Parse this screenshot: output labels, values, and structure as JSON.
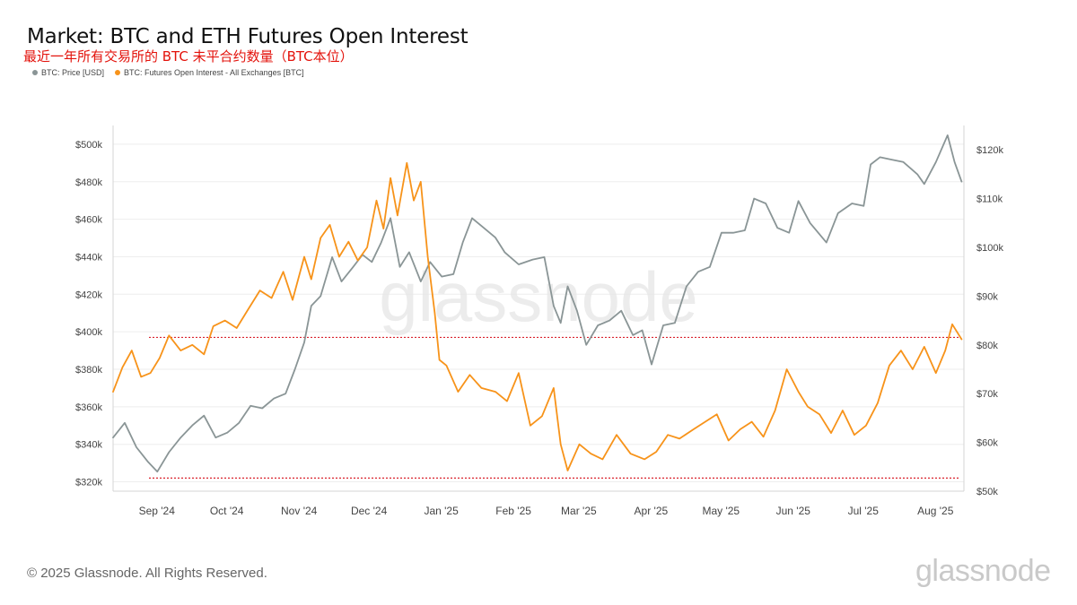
{
  "title": "Market: BTC and ETH Futures Open Interest",
  "subtitle": "最近一年所有交易所的 BTC 未平合约数量（BTC本位）",
  "footer": "© 2025 Glassnode. All Rights Reserved.",
  "brand": "glassnode",
  "watermark": "glassnode",
  "chart_data": {
    "type": "line",
    "legend_placement": "top-left",
    "grid": true,
    "x_ticks": [
      "Sep '24",
      "Oct '24",
      "Nov '24",
      "Dec '24",
      "Jan '25",
      "Feb '25",
      "Mar '25",
      "Apr '25",
      "May '25",
      "Jun '25",
      "Jul '25",
      "Aug '25"
    ],
    "y_left": {
      "min": 315000,
      "max": 510000,
      "ticks": [
        320000,
        340000,
        360000,
        380000,
        400000,
        420000,
        440000,
        460000,
        480000,
        500000
      ],
      "tick_labels": [
        "$320k",
        "$340k",
        "$360k",
        "$380k",
        "$400k",
        "$420k",
        "$440k",
        "$460k",
        "$480k",
        "$500k"
      ]
    },
    "y_right": {
      "min": 50000,
      "max": 125000,
      "ticks": [
        50000,
        60000,
        70000,
        80000,
        90000,
        100000,
        110000,
        120000
      ],
      "tick_labels": [
        "$50k",
        "$60k",
        "$70k",
        "$80k",
        "$90k",
        "$100k",
        "$110k",
        "$120k"
      ]
    },
    "reference_lines": [
      {
        "axis": "left",
        "value": 397000,
        "color": "#d9232e"
      },
      {
        "axis": "left",
        "value": 322000,
        "color": "#d9232e"
      }
    ],
    "series": [
      {
        "name": "BTC: Price [USD]",
        "axis": "right",
        "color": "#8a9596",
        "x": [
          "2024-08-20",
          "2024-08-25",
          "2024-08-30",
          "2024-09-04",
          "2024-09-08",
          "2024-09-13",
          "2024-09-18",
          "2024-09-23",
          "2024-09-28",
          "2024-10-03",
          "2024-10-08",
          "2024-10-13",
          "2024-10-18",
          "2024-10-23",
          "2024-10-28",
          "2024-11-02",
          "2024-11-06",
          "2024-11-10",
          "2024-11-13",
          "2024-11-17",
          "2024-11-22",
          "2024-11-26",
          "2024-12-01",
          "2024-12-05",
          "2024-12-09",
          "2024-12-13",
          "2024-12-17",
          "2024-12-21",
          "2024-12-25",
          "2024-12-30",
          "2025-01-03",
          "2025-01-08",
          "2025-01-13",
          "2025-01-17",
          "2025-01-21",
          "2025-01-26",
          "2025-01-31",
          "2025-02-04",
          "2025-02-10",
          "2025-02-16",
          "2025-02-21",
          "2025-02-25",
          "2025-02-28",
          "2025-03-03",
          "2025-03-07",
          "2025-03-11",
          "2025-03-16",
          "2025-03-21",
          "2025-03-26",
          "2025-03-31",
          "2025-04-04",
          "2025-04-08",
          "2025-04-13",
          "2025-04-18",
          "2025-04-23",
          "2025-04-28",
          "2025-05-03",
          "2025-05-08",
          "2025-05-13",
          "2025-05-18",
          "2025-05-22",
          "2025-05-27",
          "2025-06-01",
          "2025-06-06",
          "2025-06-10",
          "2025-06-15",
          "2025-06-22",
          "2025-06-27",
          "2025-07-03",
          "2025-07-08",
          "2025-07-11",
          "2025-07-15",
          "2025-07-20",
          "2025-07-25",
          "2025-07-31",
          "2025-08-03",
          "2025-08-08",
          "2025-08-13",
          "2025-08-16",
          "2025-08-19"
        ],
        "y": [
          61000,
          64000,
          59000,
          56000,
          54000,
          58000,
          61000,
          63500,
          65500,
          61000,
          62000,
          64000,
          67500,
          67000,
          69000,
          70000,
          75000,
          80500,
          88000,
          90000,
          98000,
          93000,
          96000,
          98500,
          97000,
          101000,
          106000,
          96000,
          99000,
          93000,
          97000,
          94000,
          94500,
          101000,
          106000,
          104000,
          102000,
          99000,
          96500,
          97500,
          98000,
          88000,
          84500,
          92000,
          87000,
          80000,
          84000,
          85000,
          87000,
          82000,
          83000,
          76000,
          84000,
          84500,
          92000,
          95000,
          96000,
          103000,
          103000,
          103500,
          110000,
          109000,
          104000,
          103000,
          109500,
          105000,
          101000,
          107000,
          109000,
          108500,
          117000,
          118500,
          118000,
          117500,
          115000,
          113000,
          117500,
          123000,
          117500,
          113500
        ]
      },
      {
        "name": "BTC: Futures Open Interest - All Exchanges [BTC]",
        "axis": "left",
        "color": "#f7931a",
        "x": [
          "2024-08-20",
          "2024-08-24",
          "2024-08-28",
          "2024-09-01",
          "2024-09-05",
          "2024-09-09",
          "2024-09-13",
          "2024-09-18",
          "2024-09-23",
          "2024-09-28",
          "2024-10-02",
          "2024-10-07",
          "2024-10-12",
          "2024-10-17",
          "2024-10-22",
          "2024-10-27",
          "2024-11-01",
          "2024-11-05",
          "2024-11-10",
          "2024-11-13",
          "2024-11-17",
          "2024-11-21",
          "2024-11-25",
          "2024-11-29",
          "2024-12-03",
          "2024-12-07",
          "2024-12-11",
          "2024-12-14",
          "2024-12-17",
          "2024-12-20",
          "2024-12-24",
          "2024-12-27",
          "2024-12-30",
          "2025-01-02",
          "2025-01-05",
          "2025-01-07",
          "2025-01-10",
          "2025-01-15",
          "2025-01-20",
          "2025-01-25",
          "2025-01-31",
          "2025-02-05",
          "2025-02-10",
          "2025-02-15",
          "2025-02-20",
          "2025-02-25",
          "2025-02-28",
          "2025-03-03",
          "2025-03-08",
          "2025-03-13",
          "2025-03-18",
          "2025-03-24",
          "2025-03-30",
          "2025-04-05",
          "2025-04-10",
          "2025-04-15",
          "2025-04-20",
          "2025-04-26",
          "2025-05-01",
          "2025-05-06",
          "2025-05-11",
          "2025-05-16",
          "2025-05-21",
          "2025-05-26",
          "2025-05-31",
          "2025-06-05",
          "2025-06-10",
          "2025-06-14",
          "2025-06-19",
          "2025-06-24",
          "2025-06-29",
          "2025-07-04",
          "2025-07-09",
          "2025-07-14",
          "2025-07-19",
          "2025-07-24",
          "2025-07-29",
          "2025-08-03",
          "2025-08-08",
          "2025-08-12",
          "2025-08-15",
          "2025-08-19"
        ],
        "y": [
          368000,
          381000,
          390000,
          376000,
          378000,
          386000,
          398000,
          390000,
          393000,
          388000,
          403000,
          406000,
          402000,
          412000,
          422000,
          418000,
          432000,
          417000,
          440000,
          428000,
          450000,
          457000,
          440000,
          448000,
          438000,
          445000,
          470000,
          455000,
          482000,
          462000,
          490000,
          470000,
          480000,
          440000,
          410000,
          385000,
          382000,
          368000,
          377000,
          370000,
          368000,
          363000,
          378000,
          350000,
          355000,
          370000,
          340000,
          326000,
          340000,
          335000,
          332000,
          345000,
          335000,
          332000,
          336000,
          345000,
          343000,
          348000,
          352000,
          356000,
          342000,
          348000,
          352000,
          344000,
          358000,
          380000,
          368000,
          360000,
          356000,
          346000,
          358000,
          345000,
          350000,
          362000,
          382000,
          390000,
          380000,
          392000,
          378000,
          390000,
          404000,
          396000
        ]
      }
    ]
  }
}
